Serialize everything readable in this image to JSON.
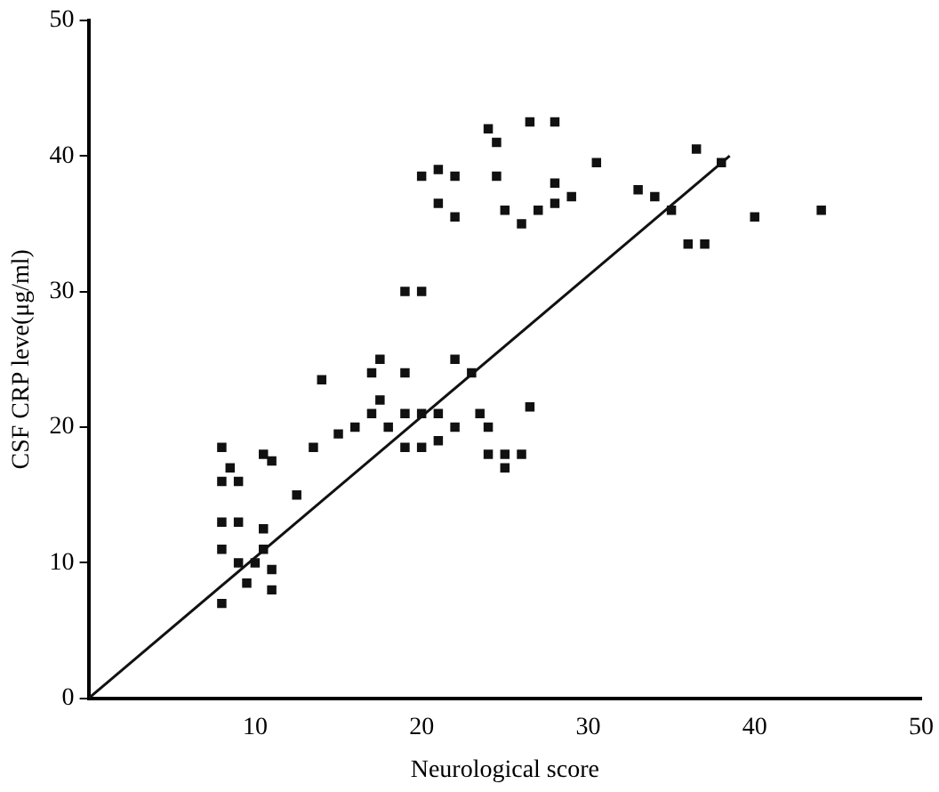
{
  "chart_data": {
    "type": "scatter",
    "xlabel": "Neurological score",
    "ylabel": "CSF CRP leve(μg/ml)",
    "xlim": [
      0,
      50
    ],
    "ylim": [
      0,
      50
    ],
    "xticks": [
      10,
      20,
      30,
      40,
      50
    ],
    "yticks": [
      0,
      10,
      20,
      30,
      40,
      50
    ],
    "grid": false,
    "legend": false,
    "marker": "square",
    "series": [
      {
        "color": "#111111",
        "x": [
          8,
          8.5,
          9,
          8,
          10.5,
          11,
          8,
          9,
          10.5,
          8,
          9,
          10,
          11,
          10.5,
          9.5,
          11,
          8,
          12.5,
          13.5,
          14,
          15,
          16,
          17,
          17.5,
          17.5,
          17,
          19,
          18,
          19,
          20,
          19,
          20,
          21,
          21,
          22,
          22,
          23,
          23.5,
          24,
          24,
          25,
          25,
          26,
          26.5,
          19,
          20,
          20,
          21,
          22,
          21,
          22,
          24,
          24.5,
          24.5,
          25,
          26,
          26.5,
          28,
          28,
          27,
          28,
          29,
          30.5,
          33,
          34,
          35,
          36.5,
          36,
          37,
          38,
          40,
          44
        ],
        "values": [
          18.5,
          17,
          16,
          16,
          18,
          17.5,
          13,
          13,
          12.5,
          11,
          10,
          10,
          9.5,
          11,
          8.5,
          8,
          7,
          15,
          18.5,
          23.5,
          19.5,
          20,
          21,
          22,
          25,
          24,
          24,
          20,
          21,
          21,
          18.5,
          18.5,
          19,
          21,
          25,
          20,
          24,
          21,
          20,
          18,
          18,
          17,
          18,
          21.5,
          30,
          30,
          38.5,
          39,
          38.5,
          36.5,
          35.5,
          42,
          41,
          38.5,
          36,
          35,
          42.5,
          42.5,
          38,
          36,
          36.5,
          37,
          39.5,
          37.5,
          37,
          36,
          40.5,
          33.5,
          33.5,
          39.5,
          35.5,
          36
        ]
      },
      {
        "type": "line",
        "color": "#111111",
        "x": [
          0,
          38.5
        ],
        "values": [
          0,
          40
        ],
        "marker": "none"
      }
    ]
  }
}
